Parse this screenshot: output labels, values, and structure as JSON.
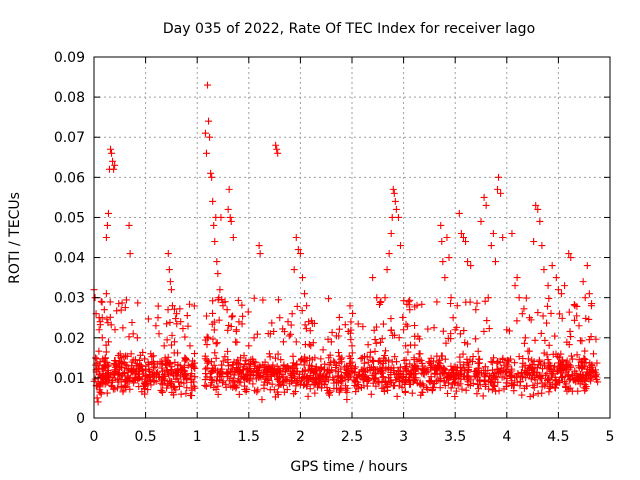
{
  "chart_data": {
    "type": "scatter",
    "title": "Day 035 of 2022, Rate Of TEC Index for receiver lago",
    "xlabel": "GPS time / hours",
    "ylabel": "ROTI / TECUs",
    "xlim": [
      0,
      5
    ],
    "ylim": [
      0,
      0.09
    ],
    "x_ticks": [
      0,
      0.5,
      1,
      1.5,
      2,
      2.5,
      3,
      3.5,
      4,
      4.5,
      5
    ],
    "x_tick_labels": [
      "0",
      "0.5",
      "1",
      "1.5",
      "2",
      "2.5",
      "3",
      "3.5",
      "4",
      "4.5",
      "5"
    ],
    "y_ticks": [
      0,
      0.01,
      0.02,
      0.03,
      0.04,
      0.05,
      0.06,
      0.07,
      0.08,
      0.09
    ],
    "y_tick_labels": [
      "0",
      "0.01",
      "0.02",
      "0.03",
      "0.04",
      "0.05",
      "0.06",
      "0.07",
      "0.08",
      "0.09"
    ],
    "grid": true,
    "marker": "plus",
    "color": "#ff0000",
    "series": [
      {
        "name": "ROTI",
        "points": [
          [
            0.0,
            0.032
          ],
          [
            0.01,
            0.03
          ],
          [
            0.02,
            0.026
          ],
          [
            0.02,
            0.012
          ],
          [
            0.03,
            0.008
          ],
          [
            0.03,
            0.005
          ],
          [
            0.04,
            0.004
          ],
          [
            0.04,
            0.01
          ],
          [
            0.05,
            0.022
          ],
          [
            0.05,
            0.025
          ],
          [
            0.06,
            0.024
          ],
          [
            0.06,
            0.014
          ],
          [
            0.07,
            0.006
          ],
          [
            0.08,
            0.025
          ],
          [
            0.08,
            0.02
          ],
          [
            0.09,
            0.011
          ],
          [
            0.1,
            0.013
          ],
          [
            0.1,
            0.027
          ],
          [
            0.11,
            0.015
          ],
          [
            0.12,
            0.031
          ],
          [
            0.12,
            0.045
          ],
          [
            0.13,
            0.048
          ],
          [
            0.14,
            0.051
          ],
          [
            0.14,
            0.019
          ],
          [
            0.15,
            0.062
          ],
          [
            0.16,
            0.067
          ],
          [
            0.17,
            0.066
          ],
          [
            0.18,
            0.064
          ],
          [
            0.19,
            0.062
          ],
          [
            0.2,
            0.063
          ],
          [
            0.2,
            0.012
          ],
          [
            0.22,
            0.013
          ],
          [
            0.24,
            0.009
          ],
          [
            0.26,
            0.015
          ],
          [
            0.28,
            0.011
          ],
          [
            0.3,
            0.009
          ],
          [
            0.32,
            0.013
          ],
          [
            0.34,
            0.048
          ],
          [
            0.35,
            0.041
          ],
          [
            0.36,
            0.016
          ],
          [
            0.38,
            0.021
          ],
          [
            0.4,
            0.011
          ],
          [
            0.42,
            0.02
          ],
          [
            0.44,
            0.01
          ],
          [
            0.46,
            0.013
          ],
          [
            0.48,
            0.008
          ],
          [
            0.5,
            0.012
          ],
          [
            0.52,
            0.01
          ],
          [
            0.55,
            0.016
          ],
          [
            0.58,
            0.009
          ],
          [
            0.6,
            0.023
          ],
          [
            0.62,
            0.025
          ],
          [
            0.64,
            0.014
          ],
          [
            0.66,
            0.01
          ],
          [
            0.68,
            0.018
          ],
          [
            0.7,
            0.012
          ],
          [
            0.72,
            0.041
          ],
          [
            0.73,
            0.037
          ],
          [
            0.74,
            0.034
          ],
          [
            0.75,
            0.032
          ],
          [
            0.76,
            0.028
          ],
          [
            0.78,
            0.019
          ],
          [
            0.8,
            0.026
          ],
          [
            0.82,
            0.009
          ],
          [
            0.84,
            0.024
          ],
          [
            0.86,
            0.012
          ],
          [
            0.88,
            0.015
          ],
          [
            0.9,
            0.01
          ],
          [
            0.93,
            0.018
          ],
          [
            0.96,
            0.013
          ],
          [
            1.08,
            0.071
          ],
          [
            1.09,
            0.066
          ],
          [
            1.1,
            0.083
          ],
          [
            1.11,
            0.074
          ],
          [
            1.12,
            0.07
          ],
          [
            1.13,
            0.061
          ],
          [
            1.14,
            0.06
          ],
          [
            1.15,
            0.054
          ],
          [
            1.16,
            0.048
          ],
          [
            1.17,
            0.044
          ],
          [
            1.18,
            0.05
          ],
          [
            1.19,
            0.039
          ],
          [
            1.2,
            0.036
          ],
          [
            1.21,
            0.03
          ],
          [
            1.22,
            0.032
          ],
          [
            1.23,
            0.05
          ],
          [
            1.25,
            0.028
          ],
          [
            1.27,
            0.029
          ],
          [
            1.29,
            0.027
          ],
          [
            1.3,
            0.052
          ],
          [
            1.31,
            0.057
          ],
          [
            1.32,
            0.05
          ],
          [
            1.33,
            0.049
          ],
          [
            1.35,
            0.045
          ],
          [
            1.38,
            0.022
          ],
          [
            1.42,
            0.015
          ],
          [
            1.46,
            0.01
          ],
          [
            1.5,
            0.018
          ],
          [
            1.55,
            0.014
          ],
          [
            1.6,
            0.043
          ],
          [
            1.61,
            0.041
          ],
          [
            1.65,
            0.012
          ],
          [
            1.7,
            0.016
          ],
          [
            1.76,
            0.068
          ],
          [
            1.77,
            0.067
          ],
          [
            1.78,
            0.066
          ],
          [
            1.8,
            0.025
          ],
          [
            1.84,
            0.013
          ],
          [
            1.88,
            0.024
          ],
          [
            1.92,
            0.026
          ],
          [
            1.94,
            0.037
          ],
          [
            1.96,
            0.045
          ],
          [
            1.98,
            0.042
          ],
          [
            2.0,
            0.041
          ],
          [
            2.02,
            0.035
          ],
          [
            2.04,
            0.031
          ],
          [
            2.06,
            0.028
          ],
          [
            2.08,
            0.024
          ],
          [
            2.1,
            0.018
          ],
          [
            2.14,
            0.015
          ],
          [
            2.18,
            0.01
          ],
          [
            2.22,
            0.017
          ],
          [
            2.26,
            0.012
          ],
          [
            2.3,
            0.019
          ],
          [
            2.35,
            0.009
          ],
          [
            2.4,
            0.014
          ],
          [
            2.45,
            0.011
          ],
          [
            2.5,
            0.018
          ],
          [
            2.55,
            0.01
          ],
          [
            2.6,
            0.015
          ],
          [
            2.65,
            0.012
          ],
          [
            2.7,
            0.035
          ],
          [
            2.74,
            0.03
          ],
          [
            2.78,
            0.029
          ],
          [
            2.82,
            0.03
          ],
          [
            2.84,
            0.037
          ],
          [
            2.86,
            0.041
          ],
          [
            2.88,
            0.046
          ],
          [
            2.89,
            0.05
          ],
          [
            2.9,
            0.057
          ],
          [
            2.91,
            0.056
          ],
          [
            2.92,
            0.054
          ],
          [
            2.93,
            0.052
          ],
          [
            2.95,
            0.05
          ],
          [
            2.97,
            0.043
          ],
          [
            3.0,
            0.022
          ],
          [
            3.02,
            0.018
          ],
          [
            3.05,
            0.029
          ],
          [
            3.06,
            0.027
          ],
          [
            3.1,
            0.01
          ],
          [
            3.15,
            0.016
          ],
          [
            3.2,
            0.011
          ],
          [
            3.25,
            0.014
          ],
          [
            3.3,
            0.012
          ],
          [
            3.36,
            0.048
          ],
          [
            3.37,
            0.044
          ],
          [
            3.38,
            0.039
          ],
          [
            3.4,
            0.035
          ],
          [
            3.42,
            0.045
          ],
          [
            3.44,
            0.04
          ],
          [
            3.46,
            0.03
          ],
          [
            3.48,
            0.025
          ],
          [
            3.5,
            0.022
          ],
          [
            3.52,
            0.028
          ],
          [
            3.54,
            0.051
          ],
          [
            3.56,
            0.046
          ],
          [
            3.58,
            0.045
          ],
          [
            3.6,
            0.044
          ],
          [
            3.62,
            0.039
          ],
          [
            3.65,
            0.038
          ],
          [
            3.7,
            0.027
          ],
          [
            3.75,
            0.049
          ],
          [
            3.78,
            0.055
          ],
          [
            3.8,
            0.053
          ],
          [
            3.82,
            0.03
          ],
          [
            3.85,
            0.043
          ],
          [
            3.87,
            0.046
          ],
          [
            3.89,
            0.039
          ],
          [
            3.91,
            0.057
          ],
          [
            3.92,
            0.06
          ],
          [
            3.94,
            0.056
          ],
          [
            3.96,
            0.045
          ],
          [
            4.0,
            0.022
          ],
          [
            4.05,
            0.046
          ],
          [
            4.08,
            0.033
          ],
          [
            4.1,
            0.035
          ],
          [
            4.12,
            0.03
          ],
          [
            4.15,
            0.026
          ],
          [
            4.18,
            0.02
          ],
          [
            4.22,
            0.025
          ],
          [
            4.26,
            0.044
          ],
          [
            4.28,
            0.053
          ],
          [
            4.3,
            0.052
          ],
          [
            4.32,
            0.049
          ],
          [
            4.34,
            0.043
          ],
          [
            4.36,
            0.037
          ],
          [
            4.4,
            0.033
          ],
          [
            4.44,
            0.038
          ],
          [
            4.48,
            0.035
          ],
          [
            4.5,
            0.032
          ],
          [
            4.53,
            0.031
          ],
          [
            4.56,
            0.033
          ],
          [
            4.6,
            0.041
          ],
          [
            4.62,
            0.04
          ],
          [
            4.66,
            0.028
          ],
          [
            4.7,
            0.023
          ],
          [
            4.74,
            0.034
          ],
          [
            4.76,
            0.03
          ],
          [
            4.78,
            0.038
          ],
          [
            4.8,
            0.031
          ],
          [
            4.82,
            0.028
          ],
          [
            4.84,
            0.016
          ],
          [
            4.86,
            0.012
          ],
          [
            4.88,
            0.009
          ]
        ]
      }
    ],
    "dense_band": {
      "description": "dense background of ROTI points",
      "x_range": [
        0,
        4.88
      ],
      "gap": [
        0.98,
        1.07
      ],
      "y_center": 0.011,
      "y_spread": 0.007,
      "count": 1700
    }
  }
}
